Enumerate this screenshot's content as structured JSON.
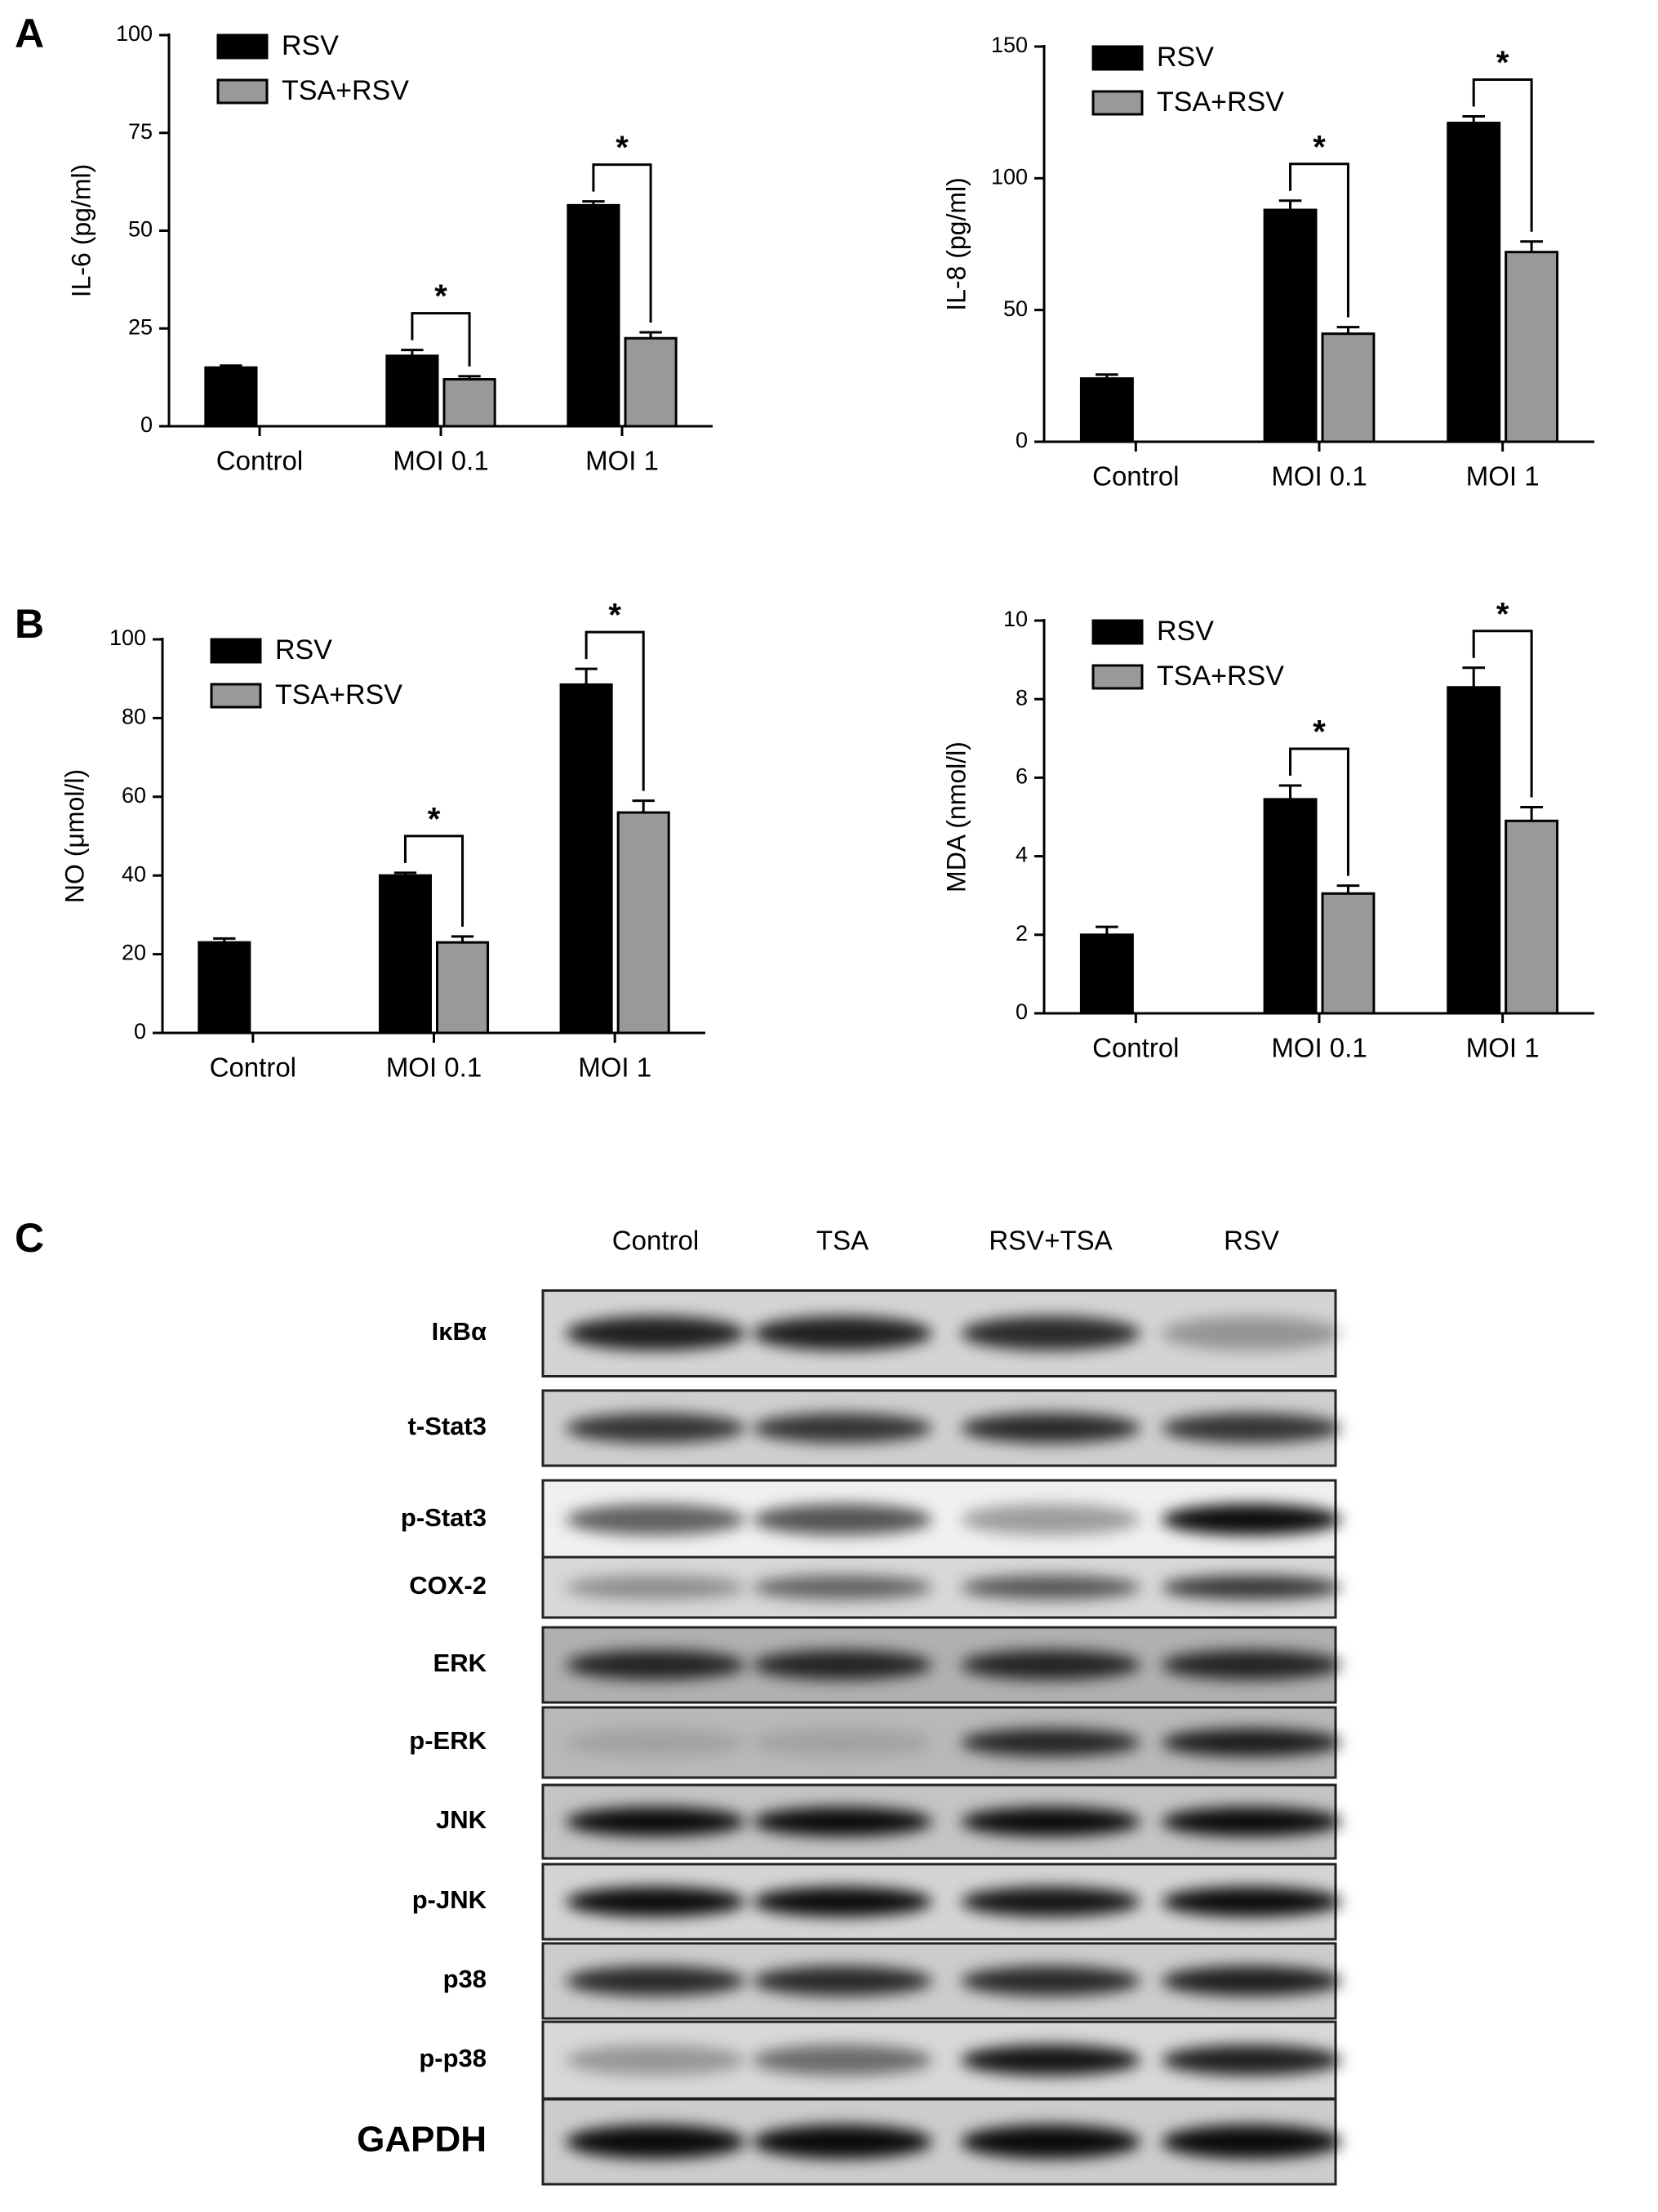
{
  "panel_labels": [
    "A",
    "B",
    "C"
  ],
  "chart_data": [
    {
      "type": "bar",
      "ylabel": "IL-6 (pg/ml)",
      "categories": [
        "Control",
        "MOI 0.1",
        "MOI 1"
      ],
      "series": [
        {
          "name": "RSV",
          "color": "#000000",
          "values": [
            15,
            18,
            56.5
          ],
          "errors": [
            0.5,
            1.5,
            1
          ]
        },
        {
          "name": "TSA+RSV",
          "color": "#999999",
          "values": [
            null,
            12,
            22.5
          ],
          "errors": [
            null,
            0.8,
            1.5
          ]
        }
      ],
      "ylim": [
        0,
        100
      ],
      "yticks": [
        0,
        25,
        50,
        75,
        100
      ],
      "annotations": [
        "*",
        "*"
      ]
    },
    {
      "type": "bar",
      "ylabel": "IL-8 (pg/ml)",
      "categories": [
        "Control",
        "MOI 0.1",
        "MOI 1"
      ],
      "series": [
        {
          "name": "RSV",
          "color": "#000000",
          "values": [
            24,
            88,
            121
          ],
          "errors": [
            1.5,
            3.5,
            2.5
          ]
        },
        {
          "name": "TSA+RSV",
          "color": "#999999",
          "values": [
            null,
            41,
            72
          ],
          "errors": [
            null,
            2.5,
            4
          ]
        }
      ],
      "ylim": [
        0,
        150
      ],
      "yticks": [
        0,
        50,
        100,
        150
      ],
      "annotations": [
        "*",
        "*"
      ]
    },
    {
      "type": "bar",
      "ylabel": "NO (μmol/l)",
      "categories": [
        "Control",
        "MOI 0.1",
        "MOI 1"
      ],
      "series": [
        {
          "name": "RSV",
          "color": "#000000",
          "values": [
            23,
            40,
            88.5
          ],
          "errors": [
            1,
            0.7,
            4
          ]
        },
        {
          "name": "TSA+RSV",
          "color": "#999999",
          "values": [
            null,
            23,
            56
          ],
          "errors": [
            null,
            1.5,
            3
          ]
        }
      ],
      "ylim": [
        0,
        100
      ],
      "yticks": [
        0,
        20,
        40,
        60,
        80,
        100
      ],
      "annotations": [
        "*",
        "*"
      ]
    },
    {
      "type": "bar",
      "ylabel": "MDA (nmol/l)",
      "categories": [
        "Control",
        "MOI 0.1",
        "MOI 1"
      ],
      "series": [
        {
          "name": "RSV",
          "color": "#000000",
          "values": [
            2,
            5.45,
            8.3
          ],
          "errors": [
            0.2,
            0.35,
            0.5
          ]
        },
        {
          "name": "TSA+RSV",
          "color": "#999999",
          "values": [
            null,
            3.05,
            4.9
          ],
          "errors": [
            null,
            0.2,
            0.35
          ]
        }
      ],
      "ylim": [
        0,
        10
      ],
      "yticks": [
        0,
        2,
        4,
        6,
        8,
        10
      ],
      "annotations": [
        "*",
        "*"
      ]
    }
  ],
  "blot": {
    "lanes": [
      "Control",
      "TSA",
      "RSV+TSA",
      "RSV"
    ],
    "proteins": [
      "IκBα",
      "t-Stat3",
      "p-Stat3",
      "COX-2",
      "ERK",
      "p-ERK",
      "JNK",
      "p-JNK",
      "p38",
      "p-p38",
      "GAPDH"
    ]
  }
}
